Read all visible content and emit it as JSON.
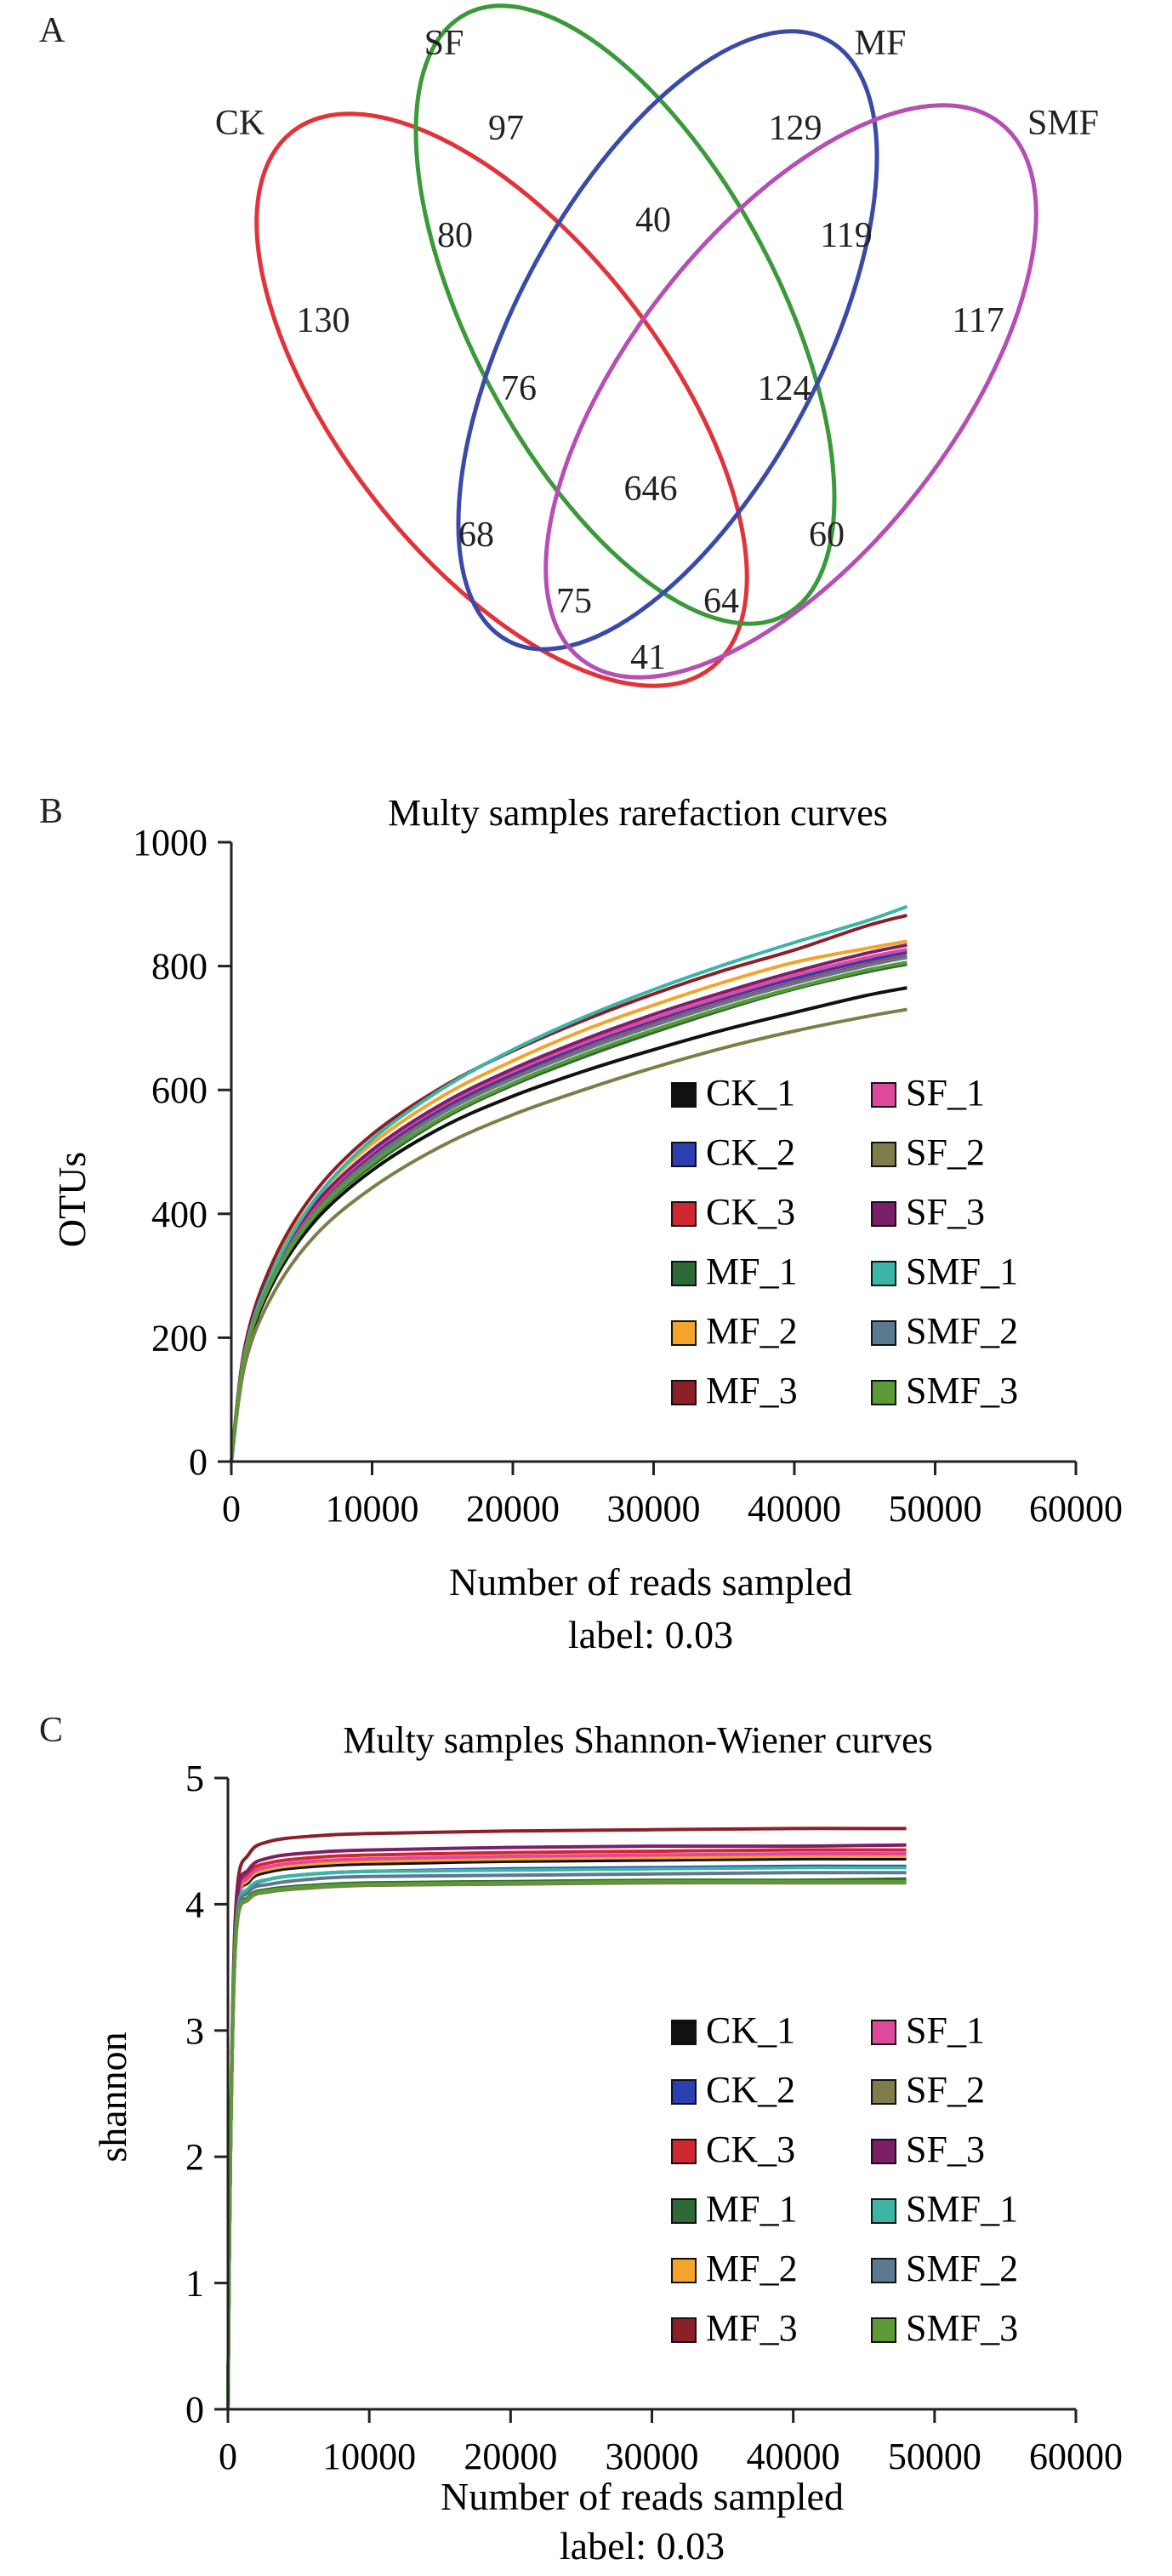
{
  "venn": {
    "panel_label": "A",
    "sets": [
      {
        "name": "CK",
        "color": "#e0333a"
      },
      {
        "name": "SF",
        "color": "#3a9a3a"
      },
      {
        "name": "MF",
        "color": "#3a4aa8"
      },
      {
        "name": "SMF",
        "color": "#b54fb5"
      }
    ],
    "regions": [
      {
        "sets": [
          "SF"
        ],
        "value": "97"
      },
      {
        "sets": [
          "MF"
        ],
        "value": "129"
      },
      {
        "sets": [
          "CK",
          "SF"
        ],
        "value": "80"
      },
      {
        "sets": [
          "SF",
          "MF"
        ],
        "value": "40"
      },
      {
        "sets": [
          "MF",
          "SMF"
        ],
        "value": "119"
      },
      {
        "sets": [
          "CK"
        ],
        "value": "130"
      },
      {
        "sets": [
          "SMF"
        ],
        "value": "117"
      },
      {
        "sets": [
          "CK",
          "SF",
          "MF"
        ],
        "value": "76"
      },
      {
        "sets": [
          "SF",
          "MF",
          "SMF"
        ],
        "value": "124"
      },
      {
        "sets": [
          "CK",
          "SF",
          "MF",
          "SMF"
        ],
        "value": "646"
      },
      {
        "sets": [
          "CK",
          "MF"
        ],
        "value": "68"
      },
      {
        "sets": [
          "SF",
          "SMF"
        ],
        "value": "60"
      },
      {
        "sets": [
          "CK",
          "MF",
          "SMF"
        ],
        "value": "75"
      },
      {
        "sets": [
          "CK",
          "SF",
          "SMF"
        ],
        "value": "64"
      },
      {
        "sets": [
          "CK",
          "SMF"
        ],
        "value": "41"
      }
    ]
  },
  "chart_data": [
    {
      "panel_label": "B",
      "type": "line",
      "title": "Multy samples rarefaction curves",
      "xlabel": "Number of reads sampled",
      "xlabel2": "label: 0.03",
      "ylabel": "OTUs",
      "xlim": [
        0,
        60000
      ],
      "ylim": [
        0,
        1000
      ],
      "xticks": [
        "0",
        "10000",
        "20000",
        "30000",
        "40000",
        "50000",
        "60000"
      ],
      "yticks": [
        "0",
        "200",
        "400",
        "600",
        "800",
        "1000"
      ],
      "legend_position": "lower-right",
      "x": [
        0,
        1000,
        3000,
        6000,
        10000,
        15000,
        20000,
        25000,
        30000,
        35000,
        40000,
        45000,
        48000
      ],
      "series": [
        {
          "name": "CK_1",
          "color": "#111111",
          "values": [
            0,
            170,
            290,
            390,
            470,
            540,
            590,
            630,
            665,
            697,
            725,
            752,
            765
          ]
        },
        {
          "name": "CK_2",
          "color": "#2b3fb0",
          "values": [
            0,
            180,
            305,
            410,
            495,
            570,
            625,
            672,
            712,
            748,
            780,
            808,
            822
          ]
        },
        {
          "name": "CK_3",
          "color": "#d0262f",
          "values": [
            0,
            178,
            302,
            406,
            490,
            565,
            620,
            666,
            706,
            742,
            774,
            802,
            816
          ]
        },
        {
          "name": "MF_1",
          "color": "#2d6a35",
          "values": [
            0,
            175,
            296,
            398,
            478,
            553,
            608,
            653,
            693,
            730,
            763,
            790,
            803
          ]
        },
        {
          "name": "MF_2",
          "color": "#f2a52a",
          "values": [
            0,
            185,
            316,
            425,
            513,
            590,
            647,
            696,
            737,
            774,
            806,
            828,
            840
          ]
        },
        {
          "name": "MF_3",
          "color": "#8b2028",
          "values": [
            0,
            190,
            325,
            437,
            528,
            605,
            663,
            712,
            755,
            793,
            826,
            864,
            882
          ]
        },
        {
          "name": "SF_1",
          "color": "#e0489c",
          "values": [
            0,
            182,
            308,
            414,
            500,
            575,
            630,
            676,
            716,
            752,
            785,
            813,
            827
          ]
        },
        {
          "name": "SF_2",
          "color": "#7e7d4a",
          "values": [
            0,
            160,
            272,
            366,
            442,
            510,
            560,
            600,
            636,
            668,
            695,
            718,
            730
          ]
        },
        {
          "name": "SF_3",
          "color": "#7c1f6a",
          "values": [
            0,
            183,
            310,
            417,
            503,
            578,
            634,
            681,
            722,
            758,
            791,
            820,
            834
          ]
        },
        {
          "name": "SMF_1",
          "color": "#3ab5a6",
          "values": [
            0,
            180,
            310,
            425,
            520,
            602,
            665,
            717,
            762,
            802,
            838,
            872,
            896
          ]
        },
        {
          "name": "SMF_2",
          "color": "#5b7a8f",
          "values": [
            0,
            176,
            300,
            404,
            488,
            563,
            618,
            664,
            704,
            740,
            772,
            800,
            814
          ]
        },
        {
          "name": "SMF_3",
          "color": "#5c9a36",
          "values": [
            0,
            175,
            297,
            400,
            482,
            556,
            611,
            657,
            697,
            733,
            765,
            793,
            806
          ]
        }
      ]
    },
    {
      "panel_label": "C",
      "type": "line",
      "title": "Multy samples Shannon-Wiener curves",
      "xlabel": "Number of reads sampled",
      "xlabel2": "label: 0.03",
      "ylabel": "shannon",
      "xlim": [
        0,
        60000
      ],
      "ylim": [
        0,
        5
      ],
      "xticks": [
        "0",
        "10000",
        "20000",
        "30000",
        "40000",
        "50000",
        "60000"
      ],
      "yticks": [
        "0",
        "1",
        "2",
        "3",
        "4",
        "5"
      ],
      "legend_position": "lower-right",
      "x": [
        0,
        200,
        600,
        1500,
        3000,
        6000,
        10000,
        20000,
        30000,
        40000,
        48000
      ],
      "series": [
        {
          "name": "CK_1",
          "color": "#111111",
          "values": [
            0,
            2.2,
            3.9,
            4.18,
            4.26,
            4.3,
            4.32,
            4.34,
            4.35,
            4.36,
            4.36
          ]
        },
        {
          "name": "CK_2",
          "color": "#2b3fb0",
          "values": [
            0,
            2.2,
            3.85,
            4.12,
            4.2,
            4.24,
            4.26,
            4.28,
            4.29,
            4.3,
            4.3
          ]
        },
        {
          "name": "CK_3",
          "color": "#d0262f",
          "values": [
            0,
            2.2,
            3.95,
            4.25,
            4.33,
            4.37,
            4.39,
            4.41,
            4.42,
            4.43,
            4.43
          ]
        },
        {
          "name": "MF_1",
          "color": "#2d6a35",
          "values": [
            0,
            2.2,
            3.8,
            4.06,
            4.12,
            4.15,
            4.17,
            4.18,
            4.19,
            4.19,
            4.2
          ]
        },
        {
          "name": "MF_2",
          "color": "#f2a52a",
          "values": [
            0,
            2.2,
            3.9,
            4.2,
            4.28,
            4.32,
            4.34,
            4.36,
            4.37,
            4.38,
            4.38
          ]
        },
        {
          "name": "MF_3",
          "color": "#8b2028",
          "values": [
            0,
            2.3,
            4.05,
            4.4,
            4.5,
            4.54,
            4.56,
            4.58,
            4.59,
            4.6,
            4.6
          ]
        },
        {
          "name": "SF_1",
          "color": "#e0489c",
          "values": [
            0,
            2.2,
            3.92,
            4.22,
            4.3,
            4.34,
            4.36,
            4.38,
            4.39,
            4.4,
            4.4
          ]
        },
        {
          "name": "SF_2",
          "color": "#7e7d4a",
          "values": [
            0,
            2.2,
            3.78,
            4.04,
            4.1,
            4.13,
            4.15,
            4.16,
            4.17,
            4.17,
            4.17
          ]
        },
        {
          "name": "SF_3",
          "color": "#7c1f6a",
          "values": [
            0,
            2.2,
            3.97,
            4.28,
            4.37,
            4.41,
            4.43,
            4.45,
            4.46,
            4.46,
            4.47
          ]
        },
        {
          "name": "SMF_1",
          "color": "#3ab5a6",
          "values": [
            0,
            2.2,
            3.85,
            4.13,
            4.2,
            4.24,
            4.26,
            4.27,
            4.28,
            4.29,
            4.29
          ]
        },
        {
          "name": "SMF_2",
          "color": "#5b7a8f",
          "values": [
            0,
            2.2,
            3.82,
            4.1,
            4.16,
            4.2,
            4.22,
            4.23,
            4.24,
            4.25,
            4.25
          ]
        },
        {
          "name": "SMF_3",
          "color": "#5c9a36",
          "values": [
            0,
            2.2,
            3.79,
            4.05,
            4.11,
            4.14,
            4.16,
            4.17,
            4.18,
            4.18,
            4.18
          ]
        }
      ]
    }
  ]
}
